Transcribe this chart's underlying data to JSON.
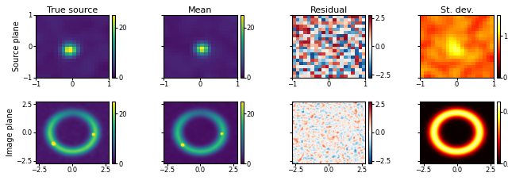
{
  "title_row1": [
    "True source",
    "Mean",
    "Residual",
    "St. dev."
  ],
  "ylabel_row1": "Source plane",
  "ylabel_row2": "Image plane",
  "xlim_source": [
    -1,
    1
  ],
  "ylim_source": [
    -1,
    1
  ],
  "xlim_image": [
    -2.75,
    2.75
  ],
  "ylim_image": [
    -2.75,
    2.75
  ],
  "source_xticks": [
    -1,
    0,
    1
  ],
  "source_yticks": [
    -1,
    0,
    1
  ],
  "image_xticks": [
    -2.5,
    0.0,
    2.5
  ],
  "image_yticks": [
    -2.5,
    0.0,
    2.5
  ],
  "cmap_main": "viridis",
  "cmap_residual": "RdBu_r",
  "vmin_main": 0,
  "vmax_main": 25,
  "vmin_res": -2.75,
  "vmax_res": 2.75,
  "vmin_stddev_source": 0,
  "vmax_stddev_source": 1.5,
  "vmin_stddev_image": 0.0,
  "vmax_stddev_image": 0.6,
  "figsize": [
    6.4,
    2.37
  ],
  "dpi": 100,
  "fontsize_title": 8,
  "fontsize_label": 7,
  "fontsize_tick": 6,
  "fontsize_cbar": 6,
  "seed": 42
}
